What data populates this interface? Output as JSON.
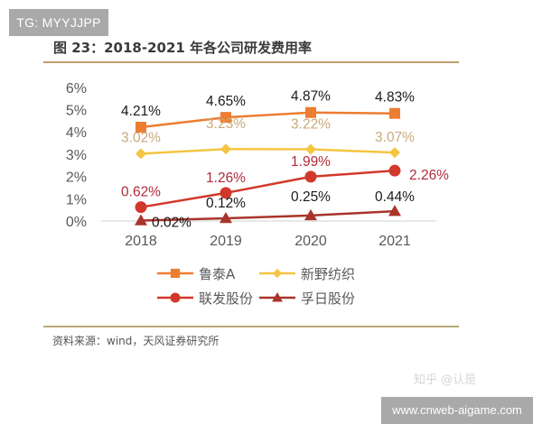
{
  "watermarks": {
    "top": "TG: MYYJJPP",
    "bottom": "www.cnweb-aigame.com",
    "zhihu": "知乎 @认是"
  },
  "figure": {
    "title": "图 23：2018-2021 年各公司研发费用率",
    "source": "资料来源：wind，天风证券研究所"
  },
  "colors": {
    "rule_top": "#c39d6a",
    "rule_bottom": "#b8a878",
    "axis": "#d9d9d9",
    "luthai": "#ed7d31",
    "xinye": "#f4c542",
    "lianfa": "#d2382a",
    "fuir": "#a8352a"
  },
  "chart_data": {
    "type": "line",
    "title": "2018-2021 年各公司研发费用率",
    "xlabel": "",
    "ylabel": "",
    "categories": [
      "2018",
      "2019",
      "2020",
      "2021"
    ],
    "y_ticks": [
      "0%",
      "1%",
      "2%",
      "3%",
      "4%",
      "5%",
      "6%"
    ],
    "ylim": [
      0,
      6
    ],
    "grid": false,
    "legend_position": "bottom",
    "series": [
      {
        "name": "鲁泰A",
        "marker": "square",
        "color": "#ed7d31",
        "label_color": "#1a1a1a",
        "values": [
          4.21,
          4.65,
          4.87,
          4.83
        ],
        "labels": [
          "4.21%",
          "4.65%",
          "4.87%",
          "4.83%"
        ]
      },
      {
        "name": "新野纺织",
        "marker": "diamond",
        "color": "#f4c542",
        "label_color": "#c9a97a",
        "values": [
          3.02,
          3.23,
          3.22,
          3.07
        ],
        "labels": [
          "3.02%",
          "3.23%",
          "3.22%",
          "3.07%"
        ]
      },
      {
        "name": "联发股份",
        "marker": "circle",
        "color": "#d2382a",
        "label_color": "#b02a3a",
        "values": [
          0.62,
          1.26,
          1.99,
          2.26
        ],
        "labels": [
          "0.62%",
          "1.26%",
          "1.99%",
          "2.26%"
        ]
      },
      {
        "name": "孚日股份",
        "marker": "triangle",
        "color": "#a8352a",
        "label_color": "#1a1a1a",
        "values": [
          0.02,
          0.12,
          0.25,
          0.44
        ],
        "labels": [
          "0.02%",
          "0.12%",
          "0.25%",
          "0.44%"
        ]
      }
    ]
  }
}
